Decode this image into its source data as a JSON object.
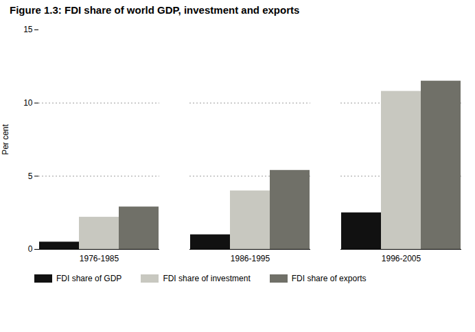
{
  "chart_data": {
    "type": "bar",
    "title": "Figure 1.3: FDI share of world GDP, investment and exports",
    "ylabel": "Per cent",
    "categories": [
      "1976-1985",
      "1986-1995",
      "1996-2005"
    ],
    "series": [
      {
        "name": "FDI share of GDP",
        "color": "#111111",
        "values": [
          0.5,
          1.0,
          2.5
        ]
      },
      {
        "name": "FDI share of investment",
        "color": "#c8c8c0",
        "values": [
          2.2,
          4.0,
          10.8
        ]
      },
      {
        "name": "FDI share of exports",
        "color": "#707068",
        "values": [
          2.9,
          5.4,
          11.5
        ]
      }
    ],
    "ylim": [
      0,
      15
    ],
    "yticks": [
      0,
      5,
      10,
      15
    ],
    "grid": true,
    "legend": "bottom"
  }
}
